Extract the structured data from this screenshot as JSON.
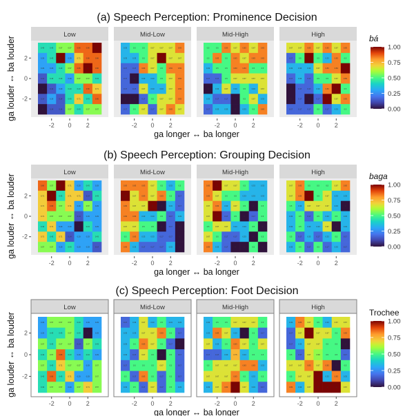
{
  "chart_data": [
    {
      "id": "a",
      "type": "heatmap",
      "title": "(a) Speech Perception: Prominence Decision",
      "style": "grey",
      "xlabel": "ga longer ↔ ba longer",
      "ylabel": "ga louder ↔ ba louder",
      "x_ticks": [
        "-2",
        "0",
        "2"
      ],
      "y_ticks": [
        "2",
        "0",
        "-2"
      ],
      "x_values": [
        -3,
        -2,
        -1,
        0,
        1,
        2,
        3
      ],
      "y_values": [
        3,
        2,
        1,
        0,
        -1,
        -2,
        -3
      ],
      "legend": {
        "title": "bá",
        "ticks": [
          "1.00",
          "0.75",
          "0.50",
          "0.25",
          "0.00"
        ],
        "range": [
          0,
          1
        ],
        "placement": "right"
      },
      "facets": [
        {
          "label": "Low",
          "values": [
            [
              0.43,
              0.43,
              0.57,
              0.57,
              0.86,
              0.86,
              1
            ],
            [
              0.29,
              0.43,
              1,
              0.29,
              0.71,
              0.86,
              0.86
            ],
            [
              0.29,
              0.29,
              0.43,
              0.57,
              0.86,
              1,
              0.86
            ],
            [
              0.14,
              0.43,
              0.43,
              0.29,
              0.57,
              0.57,
              0.43
            ],
            [
              0,
              0.14,
              0.29,
              0.43,
              0.43,
              0.86,
              0.71
            ],
            [
              0.14,
              0.29,
              0.14,
              0.43,
              0.71,
              0.43,
              0.86
            ],
            [
              0,
              0.14,
              0.14,
              0.57,
              0.43,
              0.57,
              0.57
            ]
          ]
        },
        {
          "label": "Mid-Low",
          "values": [
            [
              0.33,
              0.5,
              0.5,
              0.67,
              0.67,
              0.67,
              0.83
            ],
            [
              0.33,
              0.33,
              0.5,
              0.67,
              1,
              0.67,
              0.67
            ],
            [
              0.17,
              0.17,
              0.83,
              0.67,
              0.5,
              0.83,
              0.83
            ],
            [
              0.17,
              0,
              0.33,
              0.33,
              0.5,
              0.67,
              0.83
            ],
            [
              0.17,
              0.17,
              0.67,
              0.33,
              0.33,
              0.67,
              0.83
            ],
            [
              0,
              0,
              0.17,
              0.5,
              0.67,
              0.67,
              0.83
            ],
            [
              0.17,
              0.5,
              0.67,
              0.17,
              0.67,
              0.83,
              0.67
            ]
          ]
        },
        {
          "label": "Mid-High",
          "values": [
            [
              0.5,
              0.5,
              0.83,
              0.67,
              0.83,
              0.67,
              0.83
            ],
            [
              0.5,
              0.83,
              0.5,
              0.83,
              0.67,
              0.83,
              0.83
            ],
            [
              0.33,
              0.5,
              0.5,
              0.83,
              0.83,
              0.5,
              0.5
            ],
            [
              0.17,
              0.17,
              0.5,
              0.67,
              0.67,
              0.67,
              0.67
            ],
            [
              0,
              0.33,
              0.67,
              0.33,
              0.5,
              0.33,
              0.67
            ],
            [
              0.33,
              0.17,
              0.17,
              0,
              0.5,
              0.67,
              0.33
            ],
            [
              0.17,
              0.33,
              0.33,
              0,
              0.33,
              0.5,
              0.83
            ]
          ]
        },
        {
          "label": "High",
          "values": [
            [
              0.67,
              0.67,
              0.83,
              0.67,
              0.83,
              0.67,
              0.83
            ],
            [
              0.17,
              0.5,
              1,
              0.5,
              0.33,
              0.83,
              0.5
            ],
            [
              0.33,
              0.33,
              0.33,
              0.67,
              0.83,
              0.83,
              1
            ],
            [
              0.17,
              0.33,
              0.17,
              0.5,
              0.5,
              0.67,
              0.83
            ],
            [
              0,
              0.17,
              0.17,
              0.33,
              0.83,
              1,
              0.5
            ],
            [
              0,
              0.17,
              0,
              0.17,
              1,
              0.67,
              0.83
            ],
            [
              0.17,
              0.17,
              0.17,
              0.5,
              0.17,
              0.33,
              0.5
            ]
          ]
        }
      ]
    },
    {
      "id": "b",
      "type": "heatmap",
      "title": "(b) Speech Perception: Grouping Decision",
      "style": "grey",
      "xlabel": "ga longer ↔ ba longer",
      "ylabel": "ga louder ↔ ba louder",
      "x_ticks": [
        "-2",
        "0",
        "2"
      ],
      "y_ticks": [
        "2",
        "0",
        "-2"
      ],
      "x_values": [
        -3,
        -2,
        -1,
        0,
        1,
        2,
        3
      ],
      "y_values": [
        3,
        2,
        1,
        0,
        -1,
        -2,
        -3
      ],
      "legend": {
        "title": "baga",
        "ticks": [
          "1.00",
          "0.75",
          "0.50",
          "0.25",
          "0.00"
        ],
        "range": [
          0,
          1
        ],
        "placement": "right"
      },
      "facets": [
        {
          "label": "Low",
          "values": [
            [
              0.86,
              0.57,
              1,
              0.71,
              0.29,
              0.43,
              0.29
            ],
            [
              0.71,
              1,
              0.43,
              0.71,
              0.71,
              0.14,
              0.43
            ],
            [
              0.71,
              0.86,
              0.57,
              0.71,
              0.29,
              0.57,
              0.29
            ],
            [
              0.71,
              0.57,
              0.57,
              0.57,
              0.14,
              0.29,
              0.29
            ],
            [
              0.43,
              0.71,
              0.29,
              0.29,
              0,
              0.43,
              0.29
            ],
            [
              0.71,
              0.43,
              0.71,
              0.14,
              0.29,
              0.29,
              0.43
            ],
            [
              0.57,
              0.57,
              0.29,
              0.43,
              0.29,
              0.29,
              0.14
            ]
          ]
        },
        {
          "label": "Mid-Low",
          "values": [
            [
              0.83,
              0.83,
              0.83,
              0.67,
              0.5,
              0.33,
              0.5
            ],
            [
              1,
              0.67,
              0.83,
              0.67,
              0.83,
              0.5,
              0.17
            ],
            [
              0.83,
              0.67,
              0.67,
              1,
              0,
              0.33,
              0.17
            ],
            [
              0.83,
              0.83,
              0.33,
              0.33,
              0.5,
              0.17,
              0.33
            ],
            [
              0.67,
              0.67,
              0.5,
              0.5,
              0,
              0.17,
              0
            ],
            [
              0.5,
              0.83,
              0.33,
              0.33,
              0.17,
              0.17,
              0
            ],
            [
              0.83,
              0.33,
              0.17,
              0.17,
              0.17,
              0.33,
              0
            ]
          ]
        },
        {
          "label": "Mid-High",
          "values": [
            [
              0.83,
              1,
              0.67,
              0.67,
              0.5,
              0.33,
              0.33
            ],
            [
              0.83,
              0.67,
              0.5,
              0.5,
              0.33,
              0.33,
              0.33
            ],
            [
              0.67,
              0.83,
              0.33,
              0.67,
              0.5,
              0,
              0.5
            ],
            [
              0.67,
              1,
              0.17,
              0.5,
              0,
              0.17,
              0.5
            ],
            [
              0.5,
              0.67,
              0.67,
              0.33,
              0.33,
              0.5,
              0
            ],
            [
              0.67,
              0.5,
              0.17,
              0.17,
              0.33,
              0,
              0.5
            ],
            [
              0.83,
              0.33,
              0.17,
              0,
              0,
              0.5,
              0
            ]
          ]
        },
        {
          "label": "High",
          "values": [
            [
              0.67,
              0.83,
              0.5,
              0.5,
              0.5,
              0.67,
              0.83
            ],
            [
              0.67,
              0.83,
              1,
              0.5,
              0.67,
              0.33,
              0.33
            ],
            [
              0.5,
              0.33,
              0.67,
              0.67,
              0.67,
              0.33,
              0
            ],
            [
              0.33,
              0.5,
              0.17,
              0.5,
              0.33,
              0.5,
              0.33
            ],
            [
              0.33,
              0.5,
              0.33,
              0.33,
              0.67,
              0,
              0.33
            ],
            [
              0.5,
              0.17,
              0.33,
              0.17,
              0.33,
              0.5,
              0.17
            ],
            [
              0.33,
              0.5,
              0.17,
              0.5,
              0.17,
              0.33,
              0.17
            ]
          ]
        }
      ]
    },
    {
      "id": "c",
      "type": "heatmap",
      "title": "(c) Speech Perception: Foot Decision",
      "style": "bw",
      "xlabel": "ga longer ↔ ba longer",
      "ylabel": "ga louder ↔ ba louder",
      "x_ticks": [
        "-2",
        "0",
        "2"
      ],
      "y_ticks": [
        "2",
        "0",
        "-2"
      ],
      "x_values": [
        -3,
        -2,
        -1,
        0,
        1,
        2,
        3
      ],
      "y_values": [
        3,
        2,
        1,
        0,
        -1,
        -2,
        -3
      ],
      "legend": {
        "title": "Trochee",
        "ticks": [
          "1.00",
          "0.75",
          "0.50",
          "0.25",
          "0.00"
        ],
        "range": [
          0,
          1
        ],
        "placement": "right"
      },
      "facets": [
        {
          "label": "Low",
          "values": [
            [
              0.29,
              0.57,
              0.57,
              0.57,
              0.43,
              0.29,
              0.29
            ],
            [
              0.29,
              0.43,
              0.43,
              0.57,
              0.43,
              0,
              0.29
            ],
            [
              0.57,
              0.43,
              0.57,
              0.57,
              0.14,
              0.57,
              0.43
            ],
            [
              0.43,
              0.57,
              0.86,
              0.43,
              0.29,
              0.43,
              0.29
            ],
            [
              0.57,
              0.43,
              0.71,
              0.57,
              0.57,
              0.29,
              0.57
            ],
            [
              0.43,
              0.86,
              0.43,
              0.71,
              0.29,
              0.29,
              0.57
            ],
            [
              0.43,
              0.57,
              0.57,
              0.29,
              0.57,
              0.71,
              0.57
            ]
          ]
        },
        {
          "label": "Mid-Low",
          "values": [
            [
              0.17,
              0.33,
              0.67,
              0.33,
              0.5,
              0.33,
              0.33
            ],
            [
              0.33,
              0.33,
              0.67,
              0.67,
              0.83,
              0.5,
              0.17
            ],
            [
              0.33,
              0.5,
              0.83,
              0.67,
              0.5,
              0.17,
              0
            ],
            [
              0.33,
              0.17,
              0.67,
              0.5,
              0,
              0.5,
              0.17
            ],
            [
              0.17,
              0.5,
              0.5,
              0.5,
              0.67,
              0.5,
              0.17
            ],
            [
              0.5,
              0.17,
              0.83,
              0.5,
              0.17,
              0.5,
              0.17
            ],
            [
              0.33,
              0.5,
              0.17,
              0.67,
              0.17,
              0.5,
              0.33
            ]
          ]
        },
        {
          "label": "Mid-High",
          "values": [
            [
              0.33,
              0.5,
              0.5,
              0.67,
              0.67,
              0.67,
              0.5
            ],
            [
              0.33,
              0.83,
              0.67,
              0.33,
              0,
              0.5,
              0.17
            ],
            [
              0.67,
              0.33,
              0.5,
              0.83,
              0.67,
              0.5,
              0.67
            ],
            [
              0.17,
              0.17,
              0.33,
              0.75,
              0.33,
              0.5,
              0.5
            ],
            [
              0.5,
              0.67,
              0.67,
              0.67,
              0.83,
              0.83,
              0.33
            ],
            [
              0.67,
              0.67,
              0.67,
              0.83,
              0.5,
              0.33,
              0.5
            ],
            [
              0.33,
              0.67,
              0.83,
              1,
              0.67,
              0.33,
              0.17
            ]
          ]
        },
        {
          "label": "High",
          "values": [
            [
              0.33,
              0.83,
              0.67,
              0.5,
              0.33,
              0.67,
              0.67
            ],
            [
              0.17,
              0.67,
              1,
              0.67,
              0.67,
              0.5,
              0.83
            ],
            [
              0.17,
              0.33,
              0.67,
              0.67,
              0.5,
              0.5,
              0
            ],
            [
              0.5,
              0.17,
              0.67,
              0.58,
              0.5,
              0.5,
              0.17
            ],
            [
              0.67,
              0.67,
              0.83,
              0.67,
              0.83,
              0,
              0.5
            ],
            [
              0.5,
              0.67,
              0.67,
              1,
              0.33,
              0.83,
              0.33
            ],
            [
              0.83,
              0.33,
              0.67,
              1,
              1,
              1,
              0.67
            ]
          ]
        }
      ]
    }
  ]
}
